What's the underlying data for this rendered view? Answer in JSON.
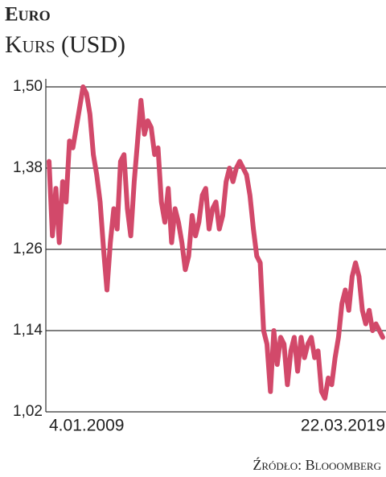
{
  "chart_data": {
    "type": "line",
    "title": "Euro",
    "subtitle": "Kurs (USD)",
    "source": "Źródło: Blooomberg",
    "categories": [
      "4.01.2009",
      null,
      null,
      null,
      null,
      null,
      null,
      null,
      null,
      null,
      null,
      null,
      null,
      null,
      null,
      null,
      null,
      null,
      null,
      null,
      null,
      null,
      null,
      null,
      null,
      null,
      null,
      null,
      null,
      null,
      null,
      null,
      null,
      null,
      null,
      null,
      null,
      null,
      null,
      null,
      null,
      null,
      null,
      null,
      null,
      null,
      null,
      null,
      null,
      null,
      null,
      null,
      null,
      null,
      null,
      null,
      null,
      null,
      null,
      null,
      null,
      null,
      null,
      null,
      null,
      null,
      null,
      null,
      null,
      null,
      null,
      null,
      null,
      null,
      null,
      null,
      null,
      null,
      null,
      null,
      null,
      null,
      null,
      null,
      null,
      null,
      null,
      null,
      null,
      null,
      null,
      null,
      null,
      null,
      null,
      null,
      null,
      null,
      "22.03.2019"
    ],
    "values": [
      1.39,
      1.28,
      1.35,
      1.27,
      1.36,
      1.33,
      1.42,
      1.41,
      1.44,
      1.47,
      1.5,
      1.49,
      1.46,
      1.4,
      1.37,
      1.33,
      1.26,
      1.2,
      1.27,
      1.32,
      1.29,
      1.39,
      1.4,
      1.32,
      1.28,
      1.36,
      1.42,
      1.48,
      1.43,
      1.45,
      1.44,
      1.4,
      1.41,
      1.33,
      1.3,
      1.35,
      1.27,
      1.32,
      1.3,
      1.27,
      1.23,
      1.25,
      1.31,
      1.28,
      1.3,
      1.34,
      1.35,
      1.29,
      1.32,
      1.33,
      1.29,
      1.31,
      1.36,
      1.38,
      1.36,
      1.38,
      1.39,
      1.38,
      1.37,
      1.34,
      1.29,
      1.25,
      1.24,
      1.14,
      1.12,
      1.05,
      1.14,
      1.09,
      1.13,
      1.12,
      1.06,
      1.11,
      1.13,
      1.08,
      1.13,
      1.1,
      1.12,
      1.13,
      1.1,
      1.11,
      1.05,
      1.04,
      1.07,
      1.06,
      1.1,
      1.13,
      1.18,
      1.2,
      1.17,
      1.22,
      1.24,
      1.22,
      1.17,
      1.15,
      1.17,
      1.14,
      1.15,
      1.14,
      1.13
    ],
    "color": "#d2496a",
    "ylim": [
      1.02,
      1.5
    ],
    "yticks": [
      {
        "value": 1.02,
        "label": "1,02"
      },
      {
        "value": 1.14,
        "label": "1,14"
      },
      {
        "value": 1.26,
        "label": "1,26"
      },
      {
        "value": 1.38,
        "label": "1,38"
      },
      {
        "value": 1.5,
        "label": "1,50"
      }
    ],
    "grid": true
  }
}
